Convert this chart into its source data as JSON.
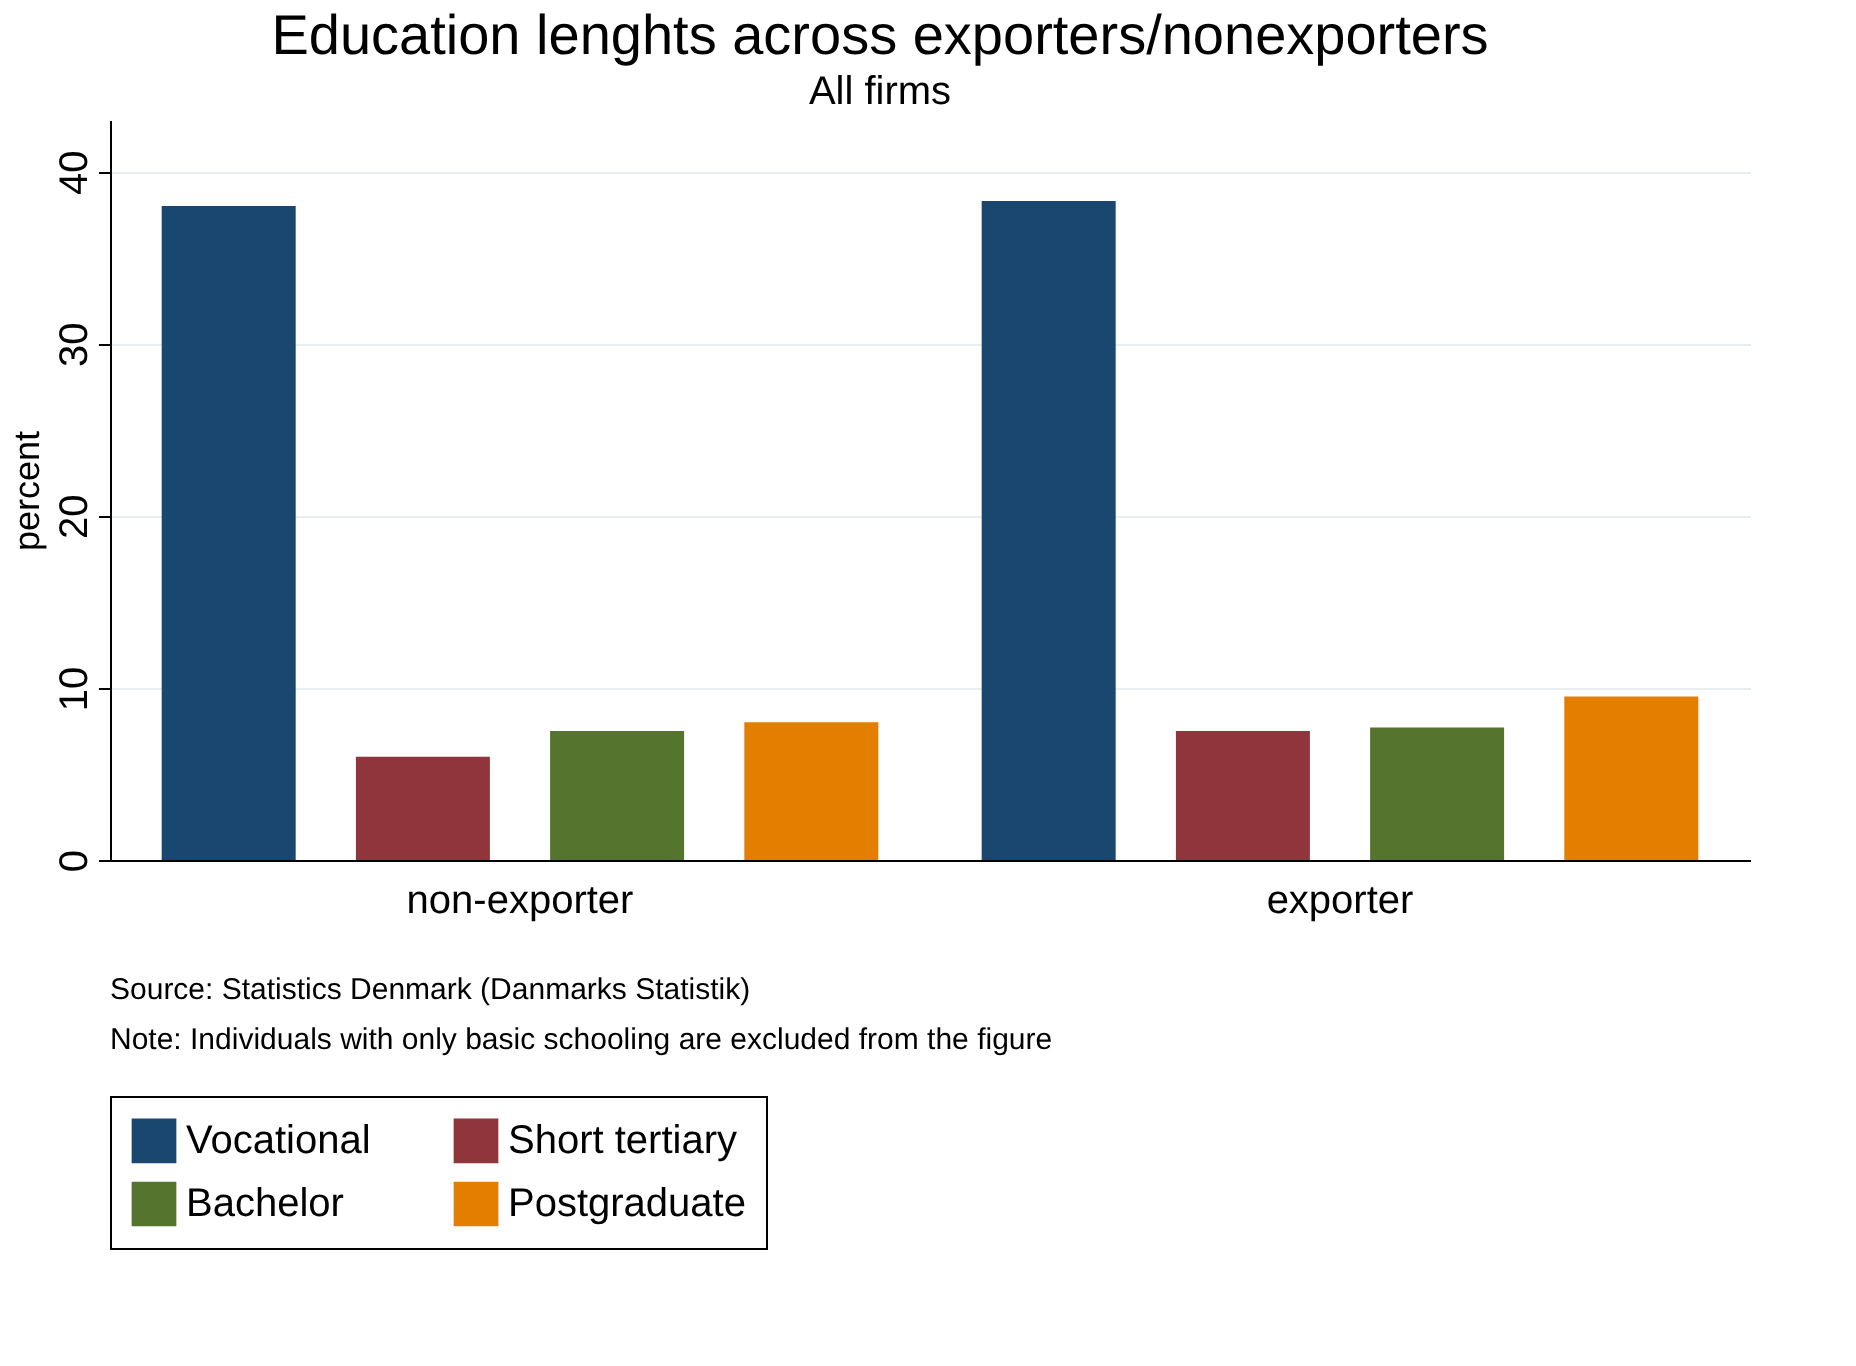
{
  "chart_data": {
    "type": "bar",
    "title": "Education lenghts across exporters/nonexporters",
    "subtitle": "All firms",
    "ylabel": "percent",
    "categories": [
      "non-exporter",
      "exporter"
    ],
    "series": [
      {
        "name": "Vocational",
        "color": "#1a476f",
        "values": [
          38.0,
          38.3
        ]
      },
      {
        "name": "Short tertiary",
        "color": "#90353b",
        "values": [
          6.0,
          7.5
        ]
      },
      {
        "name": "Bachelor",
        "color": "#55752f",
        "values": [
          7.5,
          7.7
        ]
      },
      {
        "name": "Postgraduate",
        "color": "#e37e00",
        "values": [
          8.0,
          9.5
        ]
      }
    ],
    "ylim": [
      0,
      43
    ],
    "yticks": [
      0,
      10,
      20,
      30,
      40
    ],
    "grid": "y",
    "legend": "bottom",
    "annotations": [
      "Source: Statistics Denmark (Danmarks Statistik)",
      "Note: Individuals with only basic schooling are excluded from the figure"
    ]
  }
}
